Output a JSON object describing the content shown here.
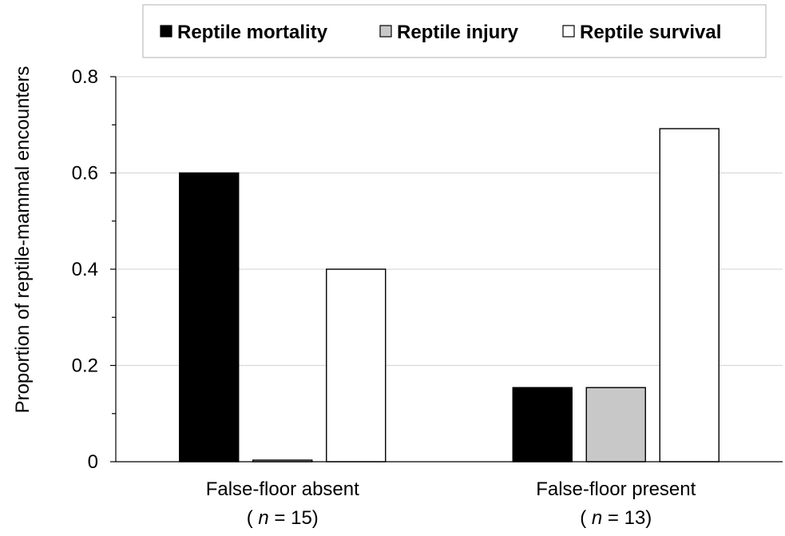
{
  "chart_data": {
    "type": "bar",
    "title": "",
    "xlabel": "",
    "ylabel": "Proportion of reptile-mammal encounters",
    "ylim": [
      0,
      0.8
    ],
    "yticks": [
      0,
      0.2,
      0.4,
      0.6,
      0.8
    ],
    "ytick_labels": [
      "0",
      "0.2",
      "0.4",
      "0.6",
      "0.8"
    ],
    "grid": true,
    "legend_position": "top",
    "categories": [
      {
        "label": "False-floor absent",
        "n_prefix": "(",
        "n_symbol": "n",
        "n_text": "= 15)"
      },
      {
        "label": "False-floor present",
        "n_prefix": "(",
        "n_symbol": "n",
        "n_text": "= 13)"
      }
    ],
    "series": [
      {
        "name": "Reptile mortality",
        "color": "#000000",
        "values": [
          0.6,
          0.154
        ]
      },
      {
        "name": "Reptile injury",
        "color": "#c8c8c8",
        "values": [
          0.0,
          0.154
        ]
      },
      {
        "name": "Reptile survival",
        "color": "#ffffff",
        "values": [
          0.4,
          0.692
        ]
      }
    ]
  }
}
